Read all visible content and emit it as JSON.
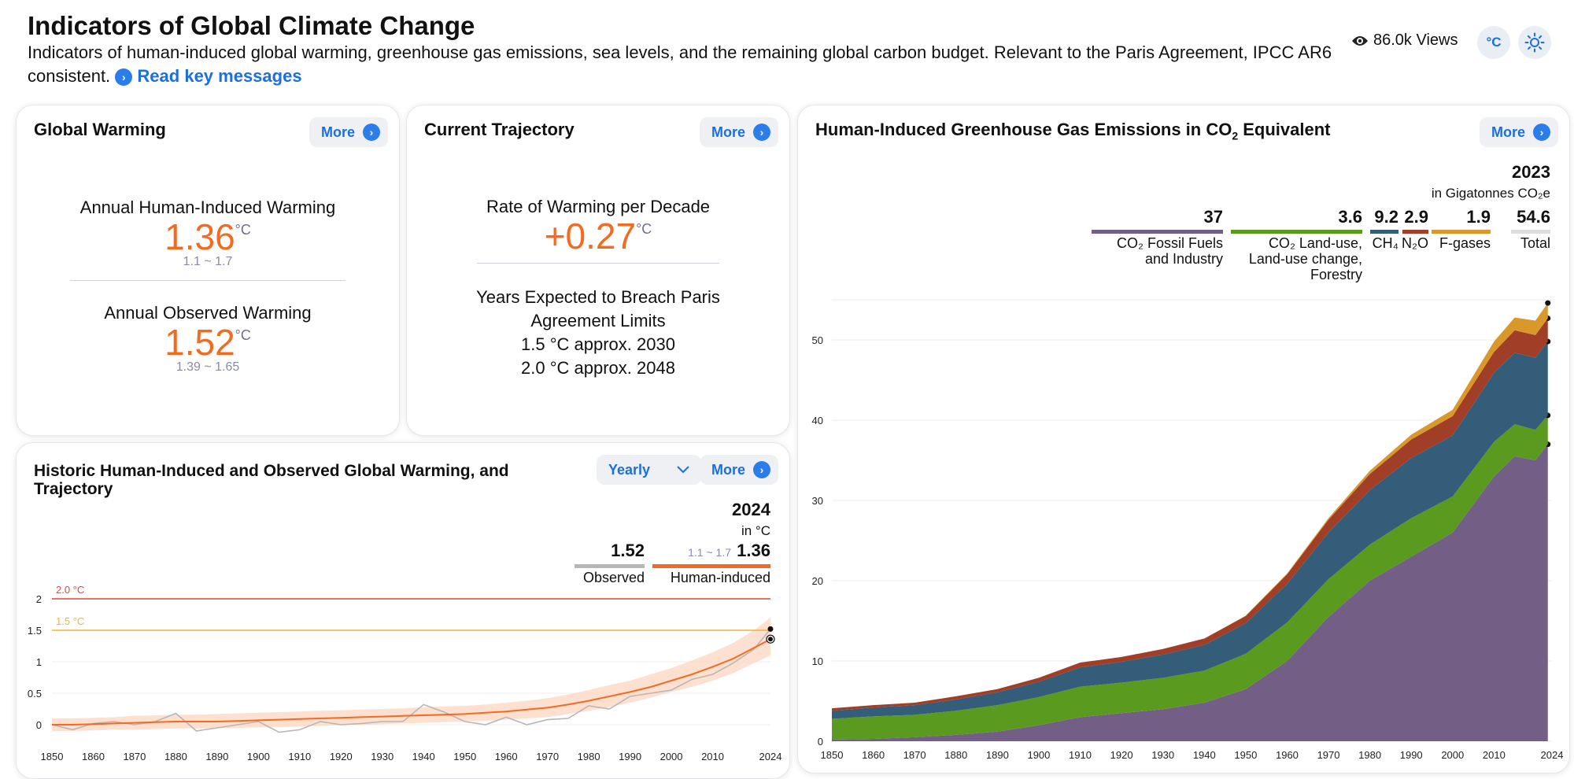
{
  "header": {
    "title": "Indicators of Global Climate Change",
    "subtitle": "Indicators of human-induced global warming, greenhouse gas emissions, sea levels, and the remaining global carbon budget. Relevant to the Paris Agreement, IPCC AR6 consistent.",
    "read_link": "Read key messages",
    "views": "86.0k Views",
    "unit_toggle": "°C",
    "icons": [
      "eye-icon",
      "sun-icon",
      "chevron-right-icon"
    ]
  },
  "global_warming": {
    "title": "Global Warming",
    "more": "More",
    "human_label": "Annual Human-Induced Warming",
    "human_value": "1.36",
    "unit": "°C",
    "human_range": "1.1 ~ 1.7",
    "observed_label": "Annual Observed Warming",
    "observed_value": "1.52",
    "observed_range": "1.39 ~ 1.65"
  },
  "trajectory": {
    "title": "Current Trajectory",
    "more": "More",
    "rate_label": "Rate of Warming per Decade",
    "rate_value": "+0.27",
    "unit": "°C",
    "breach_label_1": "Years Expected to Breach Paris",
    "breach_label_2": "Agreement Limits",
    "breach_15": "1.5 °C approx. 2030",
    "breach_20": "2.0 °C approx. 2048"
  },
  "historic": {
    "title_1": "Historic Human-Induced and Observed Global Warming, and",
    "title_2": "Trajectory",
    "dropdown": "Yearly",
    "more": "More",
    "legend_year": "2024",
    "legend_unit": "in °C",
    "observed_value": "1.52",
    "observed_label": "Observed",
    "human_range": "1.1 ~ 1.7",
    "human_value": "1.36",
    "human_label": "Human-induced",
    "colors": {
      "observed": "#b7b7b7",
      "human": "#f26b21",
      "band": "#fcd8c4",
      "limit20": "#e2453c",
      "limit15": "#f0b33a"
    }
  },
  "emissions": {
    "title_pre": "Human-Induced Greenhouse Gas Emissions in CO",
    "title_sub": "2",
    "title_post": " Equivalent",
    "more": "More",
    "legend_year": "2023",
    "legend_unit": "in Gigatonnes CO₂e",
    "legend": [
      {
        "value": "37",
        "label_1": "CO₂ Fossil Fuels",
        "label_2": "and Industry",
        "label_3": "",
        "color": "#735f86"
      },
      {
        "value": "3.6",
        "label_1": "CO₂ Land-use,",
        "label_2": "Land-use change,",
        "label_3": "Forestry",
        "color": "#5a9a1e"
      },
      {
        "value": "9.2",
        "label_1": "CH₄",
        "label_2": "",
        "label_3": "",
        "color": "#335d79"
      },
      {
        "value": "2.9",
        "label_1": "N₂O",
        "label_2": "",
        "label_3": "",
        "color": "#a03e27"
      },
      {
        "value": "1.9",
        "label_1": "F-gases",
        "label_2": "",
        "label_3": "",
        "color": "#d9982a"
      },
      {
        "value": "54.6",
        "label_1": "Total",
        "label_2": "",
        "label_3": "",
        "color": "#dddddd"
      }
    ]
  },
  "chart_data": [
    {
      "type": "line",
      "title": "Historic Human-Induced and Observed Global Warming, and Trajectory",
      "xlabel": "",
      "ylabel": "",
      "xlim": [
        1850,
        2024
      ],
      "ylim": [
        -0.3,
        2.2
      ],
      "x_ticks": [
        "1850",
        "1860",
        "1870",
        "1880",
        "1890",
        "1900",
        "1910",
        "1920",
        "1930",
        "1940",
        "1950",
        "1960",
        "1970",
        "1980",
        "1990",
        "2000",
        "2010",
        "2024"
      ],
      "y_ticks": [
        "0",
        "0.5",
        "1",
        "1.5",
        "2"
      ],
      "reference_lines": [
        {
          "label": "2.0 °C",
          "y": 2.0
        },
        {
          "label": "1.5 °C",
          "y": 1.5
        }
      ],
      "x": [
        1850,
        1855,
        1860,
        1865,
        1870,
        1875,
        1880,
        1885,
        1890,
        1895,
        1900,
        1905,
        1910,
        1915,
        1920,
        1925,
        1930,
        1935,
        1940,
        1945,
        1950,
        1955,
        1960,
        1965,
        1970,
        1975,
        1980,
        1985,
        1990,
        1995,
        2000,
        2005,
        2010,
        2015,
        2020,
        2024
      ],
      "series": [
        {
          "name": "Observed",
          "values": [
            0.0,
            -0.08,
            0.02,
            0.05,
            0.0,
            0.05,
            0.18,
            -0.1,
            -0.05,
            0.0,
            0.05,
            -0.12,
            -0.08,
            0.05,
            0.0,
            0.02,
            0.05,
            0.05,
            0.32,
            0.2,
            0.05,
            0.0,
            0.12,
            0.0,
            0.08,
            0.1,
            0.3,
            0.25,
            0.45,
            0.5,
            0.55,
            0.72,
            0.8,
            0.98,
            1.2,
            1.52
          ]
        },
        {
          "name": "Human-induced",
          "values": [
            0.0,
            0.0,
            0.01,
            0.02,
            0.03,
            0.04,
            0.05,
            0.05,
            0.05,
            0.06,
            0.07,
            0.08,
            0.09,
            0.1,
            0.11,
            0.12,
            0.13,
            0.14,
            0.15,
            0.16,
            0.17,
            0.19,
            0.21,
            0.24,
            0.27,
            0.32,
            0.38,
            0.45,
            0.52,
            0.6,
            0.7,
            0.8,
            0.92,
            1.05,
            1.22,
            1.36
          ]
        },
        {
          "name": "band_low",
          "values": [
            -0.1,
            -0.1,
            -0.09,
            -0.08,
            -0.08,
            -0.07,
            -0.06,
            -0.06,
            -0.06,
            -0.05,
            -0.04,
            -0.04,
            -0.03,
            -0.02,
            -0.01,
            0.0,
            0.01,
            0.02,
            0.03,
            0.04,
            0.05,
            0.06,
            0.08,
            0.1,
            0.12,
            0.17,
            0.22,
            0.28,
            0.35,
            0.43,
            0.52,
            0.6,
            0.7,
            0.82,
            0.98,
            1.1
          ]
        },
        {
          "name": "band_high",
          "values": [
            0.1,
            0.1,
            0.11,
            0.12,
            0.14,
            0.15,
            0.16,
            0.16,
            0.17,
            0.18,
            0.19,
            0.2,
            0.21,
            0.22,
            0.23,
            0.24,
            0.25,
            0.26,
            0.28,
            0.29,
            0.3,
            0.32,
            0.35,
            0.38,
            0.42,
            0.48,
            0.55,
            0.63,
            0.7,
            0.8,
            0.9,
            1.02,
            1.15,
            1.3,
            1.5,
            1.7
          ]
        }
      ]
    },
    {
      "type": "area",
      "title": "Human-Induced Greenhouse Gas Emissions in CO₂ Equivalent",
      "xlabel": "",
      "ylabel": "",
      "xlim": [
        1850,
        2024
      ],
      "ylim": [
        0,
        55
      ],
      "x_ticks": [
        "1850",
        "1860",
        "1870",
        "1880",
        "1890",
        "1900",
        "1910",
        "1920",
        "1930",
        "1940",
        "1950",
        "1960",
        "1970",
        "1980",
        "1990",
        "2000",
        "2010",
        "2024"
      ],
      "y_ticks": [
        "0",
        "10",
        "20",
        "30",
        "40",
        "50"
      ],
      "x": [
        1850,
        1860,
        1870,
        1880,
        1890,
        1900,
        1910,
        1920,
        1930,
        1940,
        1950,
        1960,
        1970,
        1980,
        1990,
        2000,
        2010,
        2015,
        2020,
        2023
      ],
      "series": [
        {
          "name": "CO₂ Fossil Fuels and Industry",
          "values": [
            0.2,
            0.3,
            0.5,
            0.8,
            1.2,
            2.0,
            3.0,
            3.5,
            4.0,
            4.8,
            6.5,
            10.0,
            15.5,
            20.0,
            23.0,
            26.0,
            33.0,
            35.5,
            35.0,
            37.0
          ]
        },
        {
          "name": "CO₂ Land-use, Land-use change, Forestry",
          "values": [
            2.6,
            2.8,
            2.8,
            3.0,
            3.3,
            3.5,
            3.8,
            3.8,
            3.9,
            4.0,
            4.4,
            4.8,
            4.7,
            4.5,
            4.8,
            4.5,
            4.3,
            4.0,
            3.8,
            3.6
          ]
        },
        {
          "name": "CH₄",
          "values": [
            1.0,
            1.1,
            1.2,
            1.4,
            1.6,
            1.9,
            2.4,
            2.6,
            2.9,
            3.2,
            3.8,
            4.8,
            5.8,
            6.8,
            7.5,
            7.6,
            8.6,
            8.9,
            9.0,
            9.2
          ]
        },
        {
          "name": "N₂O",
          "values": [
            0.3,
            0.3,
            0.3,
            0.4,
            0.4,
            0.5,
            0.6,
            0.6,
            0.7,
            0.8,
            0.9,
            1.2,
            1.6,
            2.0,
            2.3,
            2.4,
            2.6,
            2.8,
            2.8,
            2.9
          ]
        },
        {
          "name": "F-gases",
          "values": [
            0,
            0,
            0,
            0,
            0,
            0,
            0,
            0,
            0,
            0,
            0.05,
            0.1,
            0.2,
            0.4,
            0.6,
            0.8,
            1.3,
            1.6,
            1.8,
            1.9
          ]
        }
      ]
    }
  ]
}
